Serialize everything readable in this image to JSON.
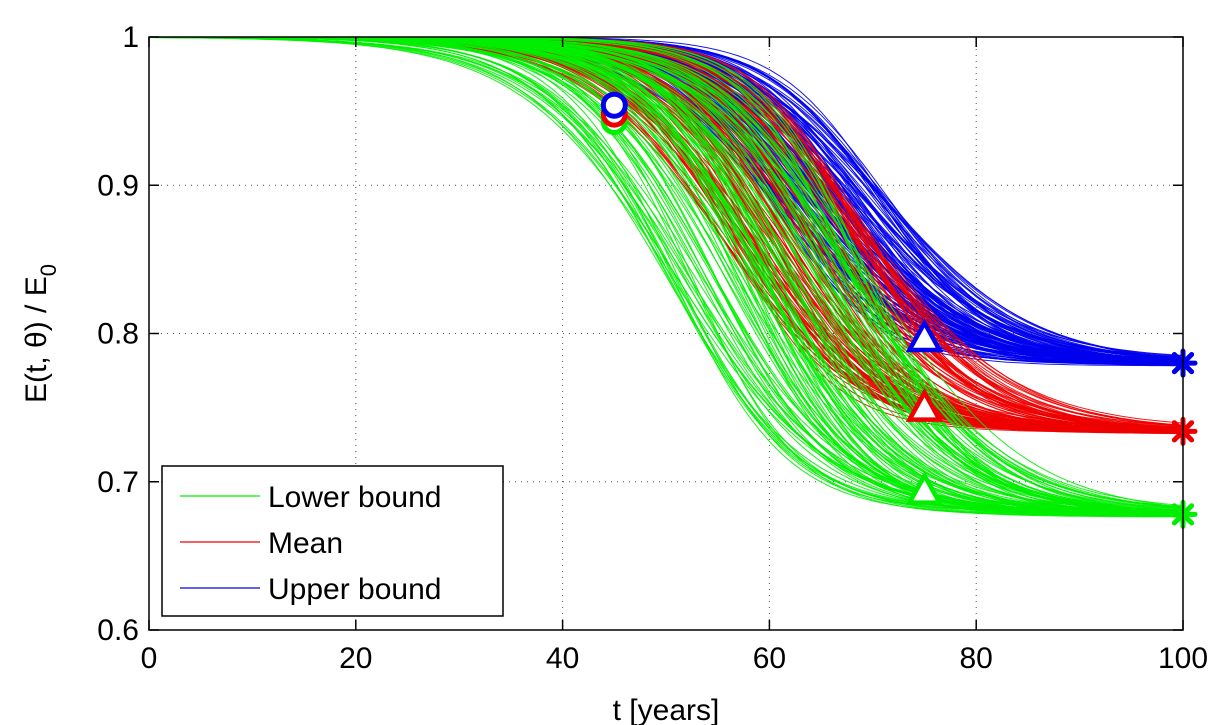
{
  "chart_data": {
    "type": "line",
    "title": "",
    "xlabel": "t [years]",
    "ylabel_main": "E(t, θ) / E",
    "ylabel_sub": "0",
    "xlim": [
      0,
      100
    ],
    "ylim": [
      0.6,
      1.0
    ],
    "xticks": [
      0,
      20,
      40,
      60,
      80,
      100
    ],
    "yticks": [
      0.6,
      0.7,
      0.8,
      0.9,
      1.0
    ],
    "xtick_labels": [
      "0",
      "20",
      "40",
      "60",
      "80",
      "100"
    ],
    "ytick_labels": [
      "0.6",
      "0.7",
      "0.8",
      "0.9",
      "1"
    ],
    "grid": true,
    "legend_position": "bottom-left",
    "series": [
      {
        "name": "Lower bound",
        "color": "#00ee00",
        "line_count": 120,
        "final_value": 0.678,
        "midpoint_range": [
          50,
          70
        ],
        "marker_circle": {
          "t": 45,
          "value": 0.943
        },
        "marker_triangle": {
          "t": 75,
          "value": 0.694
        },
        "marker_star": {
          "t": 100,
          "value": 0.678
        }
      },
      {
        "name": "Mean",
        "color": "#ee0000",
        "line_count": 120,
        "final_value": 0.734,
        "midpoint_range": [
          55,
          70
        ],
        "marker_circle": {
          "t": 45,
          "value": 0.948
        },
        "marker_triangle": {
          "t": 75,
          "value": 0.75
        },
        "marker_star": {
          "t": 100,
          "value": 0.734
        }
      },
      {
        "name": "Upper bound",
        "color": "#0000ee",
        "line_count": 120,
        "final_value": 0.78,
        "midpoint_range": [
          60,
          72
        ],
        "marker_circle": {
          "t": 45,
          "value": 0.954
        },
        "marker_triangle": {
          "t": 75,
          "value": 0.797
        },
        "marker_star": {
          "t": 100,
          "value": 0.78
        }
      }
    ]
  }
}
